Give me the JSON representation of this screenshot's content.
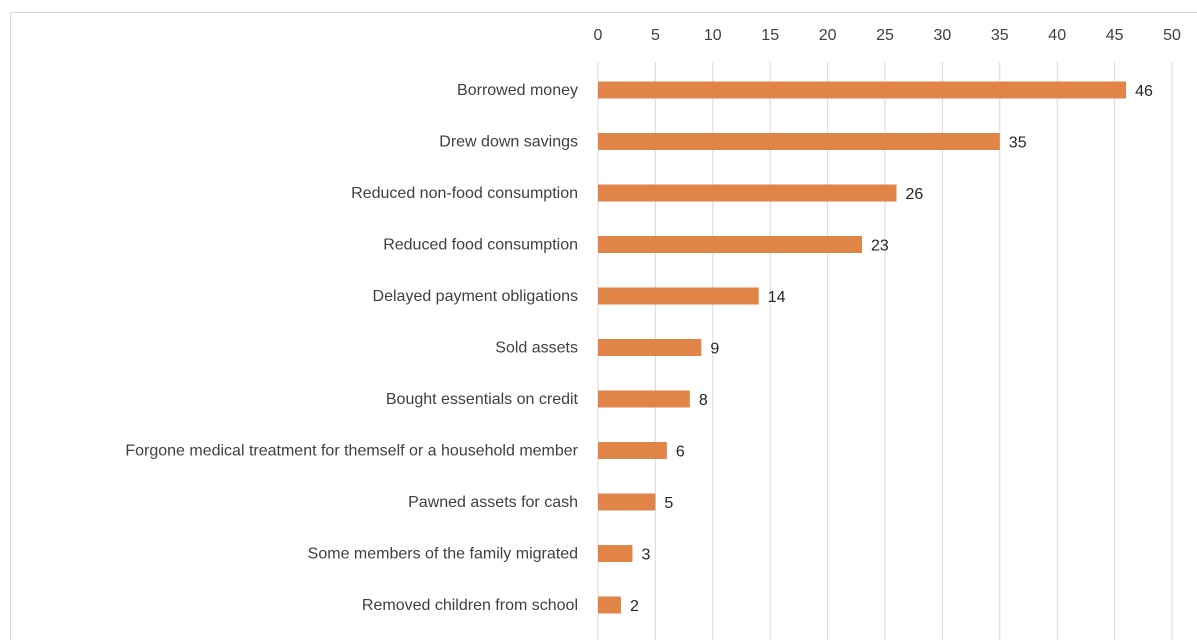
{
  "chart_data": {
    "type": "bar",
    "orientation": "horizontal",
    "categories": [
      "Borrowed money",
      "Drew down savings",
      "Reduced non-food consumption",
      "Reduced food consumption",
      "Delayed payment obligations",
      "Sold assets",
      "Bought essentials on credit",
      "Forgone medical treatment for themself or a household member",
      "Pawned assets for cash",
      "Some members of the family migrated",
      "Removed children from school"
    ],
    "values": [
      46,
      35,
      26,
      23,
      14,
      9,
      8,
      6,
      5,
      3,
      2
    ],
    "xlim": [
      0,
      50
    ],
    "xticks": [
      0,
      5,
      10,
      15,
      20,
      25,
      30,
      35,
      40,
      45,
      50
    ],
    "x_axis_position": "top",
    "grid": true,
    "legend": "none",
    "data_labels": true
  },
  "colors": {
    "bar": "#e08447",
    "grid": "#d9d9d9",
    "text": "#404040"
  }
}
